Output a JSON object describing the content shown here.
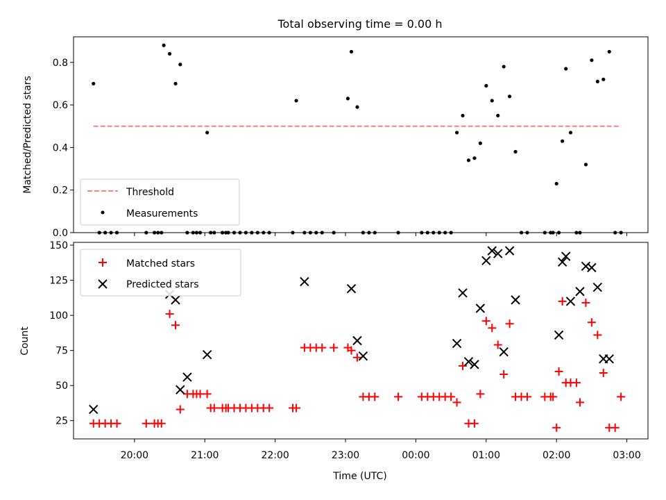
{
  "chart_data": [
    {
      "type": "scatter",
      "title": "Total observing time = 0.00 h",
      "xlabel": "",
      "ylabel": "Matched/Predicted stars",
      "x_unit": "time (UTC)",
      "ylim": [
        0,
        0.92
      ],
      "y_ticks": [
        0.0,
        0.2,
        0.4,
        0.6,
        0.8
      ],
      "y_tick_labels": [
        "0.0",
        "0.2",
        "0.4",
        "0.6",
        "0.8"
      ],
      "legend": {
        "placement": "lower-left",
        "entries": [
          "Threshold",
          "Measurements"
        ]
      },
      "threshold": {
        "name": "Threshold",
        "value": 0.5,
        "x_start": "19:25",
        "x_end": "02:55",
        "color": "#ff7f7f",
        "style": "dashed"
      },
      "series": [
        {
          "name": "Measurements",
          "color": "#000000",
          "marker": "dot",
          "x": [
            "19:25",
            "19:30",
            "19:35",
            "19:40",
            "19:45",
            "20:10",
            "20:17",
            "20:20",
            "20:23",
            "20:25",
            "20:30",
            "20:35",
            "20:39",
            "20:45",
            "20:50",
            "20:53",
            "20:56",
            "21:02",
            "21:05",
            "21:08",
            "21:15",
            "21:18",
            "21:20",
            "21:25",
            "21:30",
            "21:35",
            "21:40",
            "21:45",
            "21:50",
            "21:55",
            "22:15",
            "22:18",
            "22:25",
            "22:30",
            "22:35",
            "22:40",
            "22:50",
            "23:02",
            "23:05",
            "23:10",
            "23:15",
            "23:20",
            "23:25",
            "23:45",
            "24:05",
            "24:10",
            "24:15",
            "24:20",
            "24:25",
            "24:30",
            "24:35",
            "24:40",
            "24:45",
            "24:50",
            "24:55",
            "25:00",
            "25:05",
            "25:10",
            "25:15",
            "25:20",
            "25:25",
            "25:30",
            "25:35",
            "25:50",
            "25:55",
            "25:57",
            "26:00",
            "26:02",
            "26:05",
            "26:08",
            "26:12",
            "26:17",
            "26:20",
            "26:25",
            "26:30",
            "26:35",
            "26:40",
            "26:45",
            "26:50",
            "26:55"
          ],
          "y": [
            0.7,
            0.0,
            0.0,
            0.0,
            0.0,
            0.0,
            0.0,
            0.0,
            0.0,
            0.88,
            0.84,
            0.7,
            0.79,
            0.0,
            0.0,
            0.0,
            0.0,
            0.47,
            0.0,
            0.0,
            0.0,
            0.0,
            0.0,
            0.0,
            0.0,
            0.0,
            0.0,
            0.0,
            0.0,
            0.0,
            0.0,
            0.62,
            0.0,
            0.0,
            0.0,
            0.0,
            0.0,
            0.63,
            0.85,
            0.59,
            0.0,
            0.0,
            0.0,
            0.0,
            0.0,
            0.0,
            0.0,
            0.0,
            0.0,
            0.0,
            0.47,
            0.55,
            0.34,
            0.35,
            0.42,
            0.69,
            0.62,
            0.55,
            0.78,
            0.64,
            0.38,
            0.0,
            0.0,
            0.0,
            0.0,
            0.0,
            0.23,
            0.0,
            0.43,
            0.77,
            0.47,
            0.0,
            0.0,
            0.32,
            0.81,
            0.71,
            0.72,
            0.85,
            0.0,
            0.0
          ]
        }
      ]
    },
    {
      "type": "scatter",
      "title": "",
      "xlabel": "Time (UTC)",
      "ylabel": "Count",
      "x_unit": "time (UTC)",
      "xlim": [
        "19:08",
        "03:18"
      ],
      "ylim": [
        12,
        152
      ],
      "x_ticks": [
        "20:00",
        "21:00",
        "22:00",
        "23:00",
        "00:00",
        "01:00",
        "02:00",
        "03:00"
      ],
      "y_ticks": [
        25,
        50,
        75,
        100,
        125,
        150
      ],
      "y_tick_labels": [
        "25",
        "50",
        "75",
        "100",
        "125",
        "150"
      ],
      "legend": {
        "placement": "upper-left",
        "entries": [
          "Matched stars",
          "Predicted stars"
        ]
      },
      "series": [
        {
          "name": "Matched stars",
          "color": "#ff0000",
          "marker": "plus",
          "x": [
            "19:25",
            "19:30",
            "19:35",
            "19:40",
            "19:45",
            "20:10",
            "20:17",
            "20:20",
            "20:23",
            "20:30",
            "20:35",
            "20:39",
            "20:45",
            "20:50",
            "20:53",
            "20:56",
            "21:02",
            "21:05",
            "21:08",
            "21:15",
            "21:18",
            "21:20",
            "21:25",
            "21:30",
            "21:35",
            "21:40",
            "21:45",
            "21:50",
            "21:55",
            "22:15",
            "22:18",
            "22:25",
            "22:30",
            "22:35",
            "22:40",
            "22:50",
            "23:02",
            "23:05",
            "23:10",
            "23:15",
            "23:20",
            "23:25",
            "23:45",
            "24:05",
            "24:10",
            "24:15",
            "24:20",
            "24:25",
            "24:30",
            "24:35",
            "24:40",
            "24:45",
            "24:50",
            "24:55",
            "25:00",
            "25:05",
            "25:10",
            "25:15",
            "25:20",
            "25:25",
            "25:30",
            "25:35",
            "25:50",
            "25:55",
            "25:57",
            "26:00",
            "26:02",
            "26:05",
            "26:08",
            "26:12",
            "26:17",
            "26:20",
            "26:25",
            "26:30",
            "26:35",
            "26:40",
            "26:45",
            "26:50",
            "26:55"
          ],
          "y": [
            23,
            23,
            23,
            23,
            23,
            23,
            23,
            23,
            23,
            101,
            93,
            33,
            44,
            44,
            44,
            44,
            44,
            34,
            34,
            34,
            34,
            34,
            34,
            34,
            34,
            34,
            34,
            34,
            34,
            34,
            34,
            77,
            77,
            77,
            77,
            77,
            77,
            75,
            70,
            42,
            42,
            42,
            42,
            42,
            42,
            42,
            42,
            42,
            42,
            38,
            64,
            23,
            23,
            44,
            96,
            91,
            79,
            58,
            94,
            42,
            42,
            42,
            42,
            42,
            42,
            20,
            60,
            110,
            52,
            52,
            52,
            38,
            109,
            95,
            86,
            59,
            20,
            20,
            42
          ]
        },
        {
          "name": "Predicted stars",
          "color": "#000000",
          "marker": "x",
          "x": [
            "19:25",
            "20:30",
            "20:35",
            "20:39",
            "20:45",
            "21:02",
            "22:25",
            "23:05",
            "23:10",
            "23:15",
            "24:35",
            "24:40",
            "24:45",
            "24:50",
            "24:55",
            "25:00",
            "25:05",
            "25:10",
            "25:15",
            "25:20",
            "25:25",
            "26:02",
            "26:05",
            "26:08",
            "26:12",
            "26:20",
            "26:25",
            "26:30",
            "26:35",
            "26:40",
            "26:45"
          ],
          "y": [
            33,
            115,
            111,
            47,
            56,
            72,
            124,
            119,
            82,
            71,
            80,
            116,
            67,
            65,
            105,
            139,
            146,
            144,
            74,
            146,
            111,
            86,
            138,
            142,
            110,
            117,
            135,
            134,
            120,
            69,
            69
          ]
        }
      ]
    }
  ]
}
